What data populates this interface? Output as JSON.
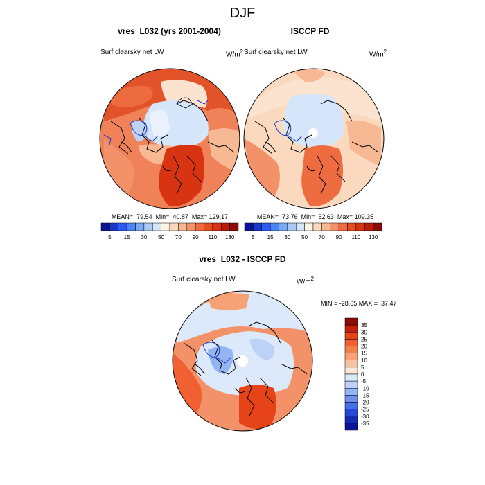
{
  "main_title": "DJF",
  "panels": [
    {
      "title": "vres_L032 (yrs 2001-2004)",
      "left_label": "Surf clearsky net LW",
      "units": "W/m",
      "units_sup": "2",
      "stats": "MEAN=  79.54  Min=  40.87  Max= 129.17"
    },
    {
      "title": "ISCCP FD",
      "left_label": "Surf clearsky net LW",
      "units": "W/m",
      "units_sup": "2",
      "stats": "MEAN=  73.76  Min=  52.63  Max= 109.35"
    }
  ],
  "diff_panel": {
    "title": "vres_L032 - ISCCP FD",
    "left_label": "Surf clearsky net LW",
    "units": "W/m",
    "units_sup": "2",
    "stats": "MIN = -28.65 MAX =  37.47"
  },
  "abs_colorbar": {
    "labels": [
      "5",
      "15",
      "30",
      "50",
      "70",
      "90",
      "110",
      "130"
    ],
    "colors": [
      "#0a1496",
      "#1a37c8",
      "#2b5bf0",
      "#4a86f5",
      "#7aa8f5",
      "#a9c8f5",
      "#d6e6fa",
      "#fff3e6",
      "#fbd9bf",
      "#f7b894",
      "#f39268",
      "#ef6b40",
      "#e74d22",
      "#d93412",
      "#b81c0a",
      "#8c0c05"
    ]
  },
  "diff_colorbar": {
    "labels": [
      "35",
      "30",
      "25",
      "20",
      "15",
      "10",
      "5",
      "0",
      "-5",
      "-10",
      "-15",
      "-20",
      "-25",
      "-30",
      "-35"
    ],
    "colors": [
      "#8c0c05",
      "#c41e0c",
      "#e64418",
      "#f06030",
      "#f2814e",
      "#f6a276",
      "#f8c3a0",
      "#fce6d6",
      "#dce9fa",
      "#bcd3f7",
      "#93b5f3",
      "#6b93ee",
      "#4570e6",
      "#2549d6",
      "#102ab4",
      "#0a1496"
    ]
  }
}
